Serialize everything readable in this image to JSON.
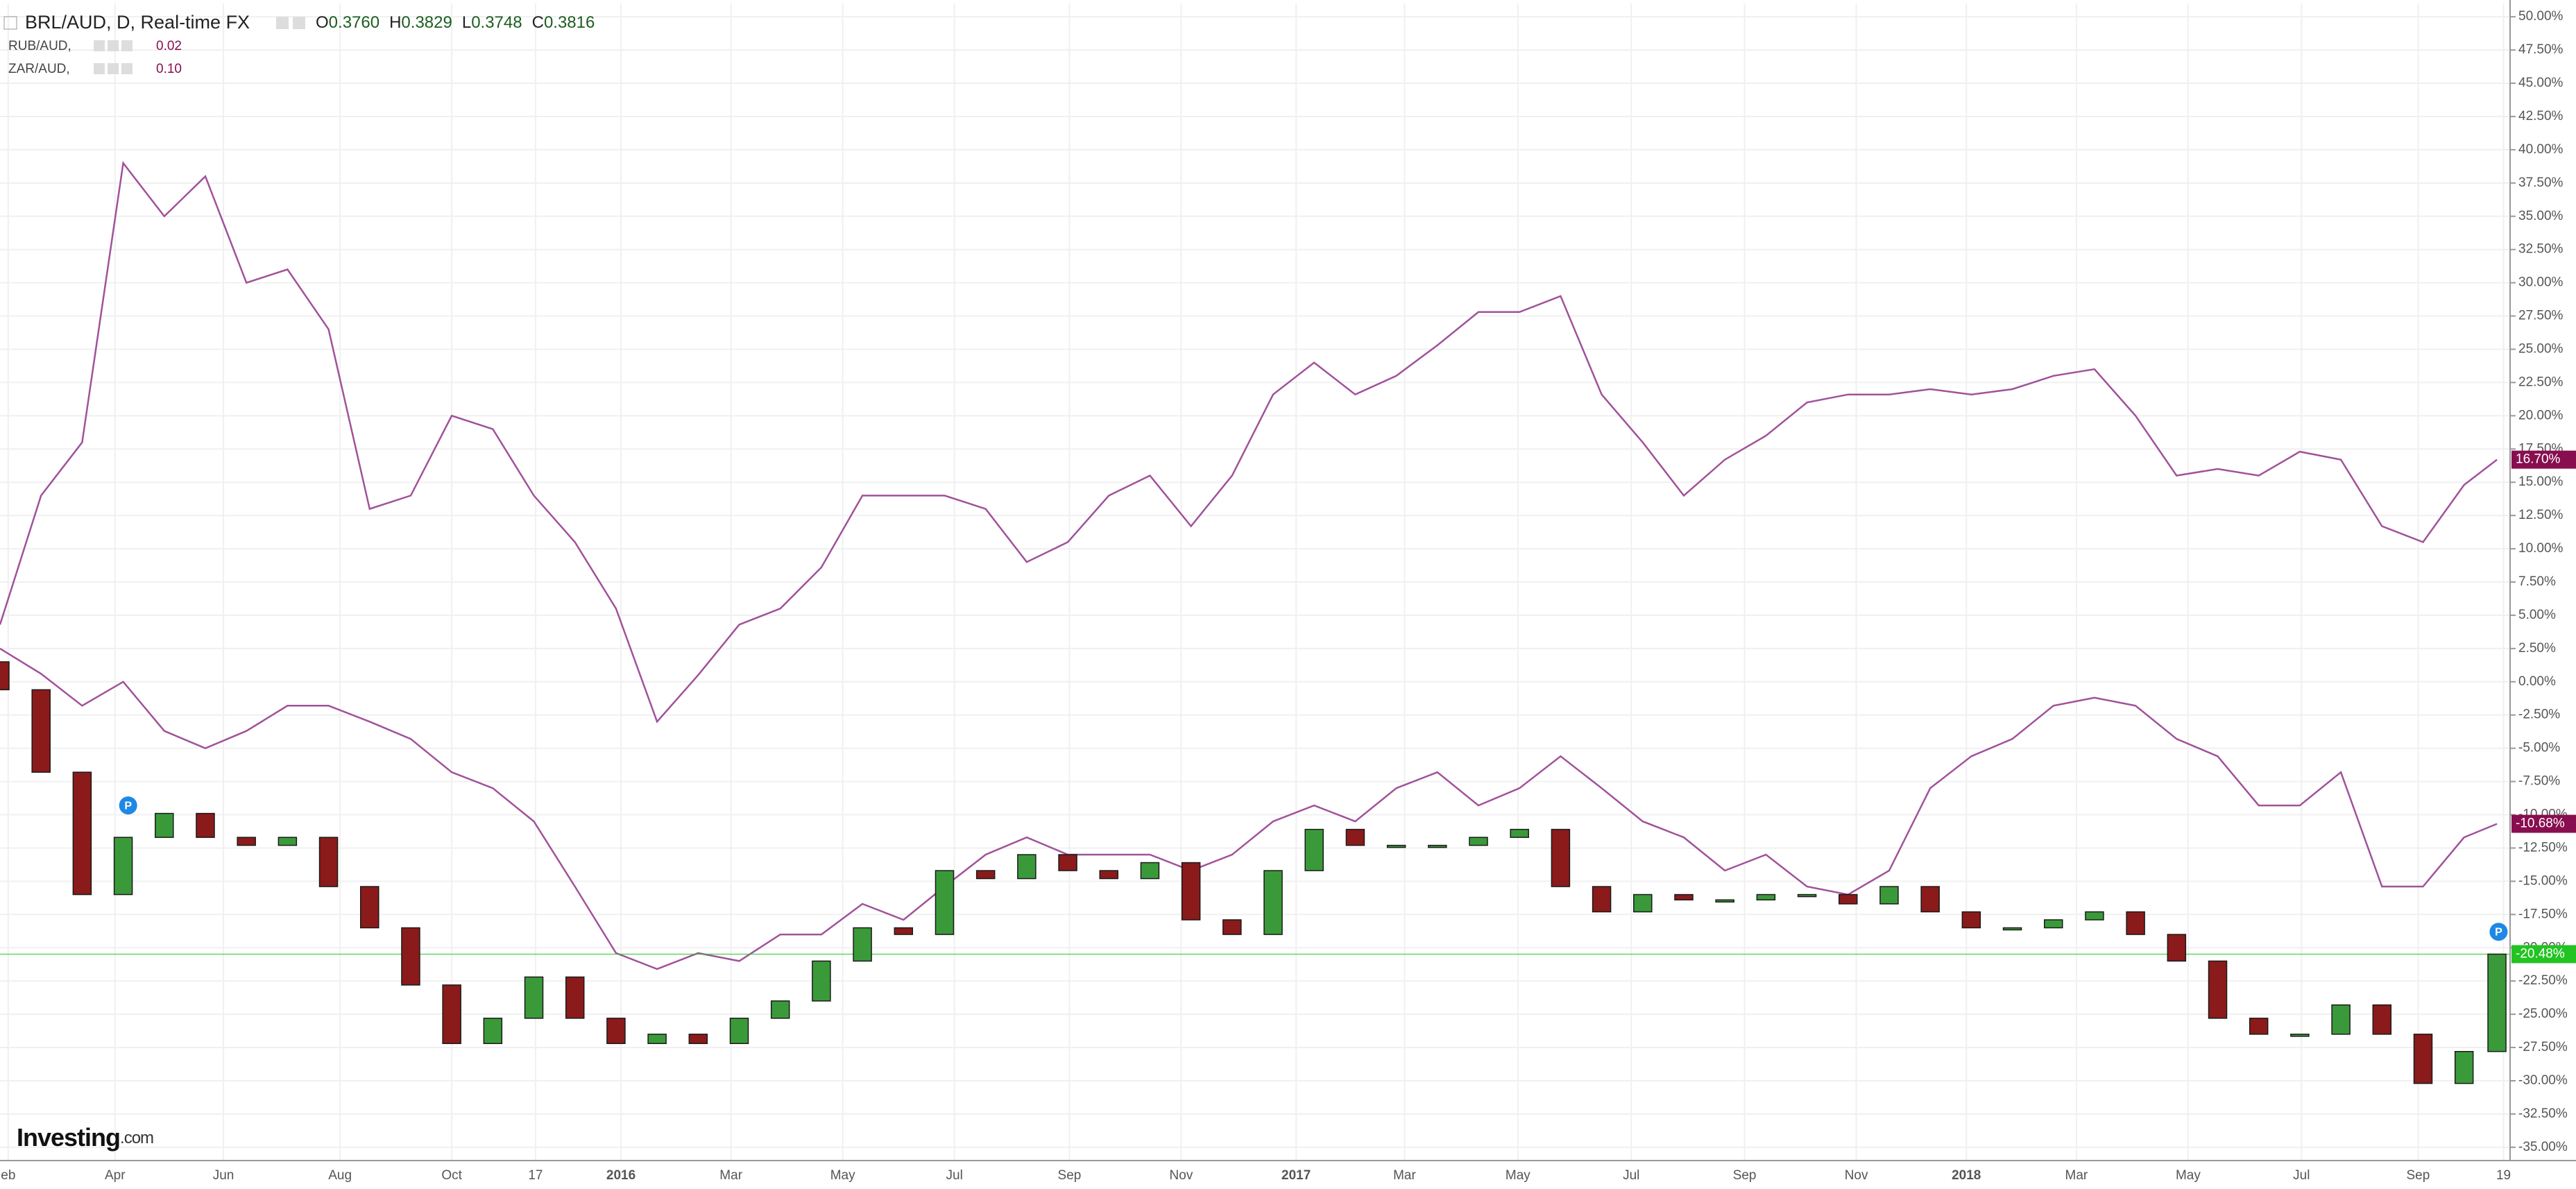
{
  "chart_data": {
    "type": "candlestick",
    "title": "BRL/AUD, D, Real-time FX",
    "ohlc": [
      {
        "key": "O",
        "value": "0.3760"
      },
      {
        "key": "H",
        "value": "0.3829"
      },
      {
        "key": "L",
        "value": "0.3748"
      },
      {
        "key": "C",
        "value": "0.3816"
      }
    ],
    "x": [
      0,
      25,
      50,
      75,
      100,
      125,
      150,
      175,
      200,
      225,
      250,
      275,
      300,
      325,
      350,
      375,
      400,
      425,
      450,
      475,
      500,
      525,
      550,
      575,
      600,
      625,
      650,
      675,
      700,
      725,
      750,
      775,
      800,
      825,
      850,
      875,
      900,
      925,
      950,
      975,
      1000,
      1025,
      1050,
      1075,
      1100,
      1125,
      1150,
      1175,
      1200,
      1225,
      1250,
      1275,
      1300,
      1325,
      1350,
      1375,
      1400,
      1425,
      1450,
      1475,
      1500,
      1520
    ],
    "candles": {
      "open": [
        1.5,
        -0.6,
        -6.8,
        -16,
        -11.7,
        -9.9,
        -11.7,
        -12.3,
        -11.7,
        -15.4,
        -18.5,
        -22.8,
        -27.2,
        -25.3,
        -22.2,
        -25.3,
        -27.2,
        -26.5,
        -27.2,
        -25.3,
        -24,
        -21,
        -18.5,
        -19,
        -14.2,
        -14.8,
        -13,
        -14.2,
        -14.8,
        -13.6,
        -17.9,
        -19,
        -14.2,
        -11.1,
        -12.3,
        -12.3,
        -12.3,
        -11.7,
        -11.1,
        -15.4,
        -17.3,
        -16,
        -16.4,
        -16.4,
        -16,
        -16,
        -16.7,
        -15.4,
        -17.3,
        -18.5,
        -18.5,
        -17.9,
        -17.3,
        -19,
        -21,
        -25.3,
        -26.5,
        -26.5,
        -24.3,
        -26.5,
        -30.2,
        -27.8
      ],
      "close": [
        -0.6,
        -6.8,
        -16,
        -11.7,
        -9.9,
        -11.7,
        -12.3,
        -11.7,
        -15.4,
        -18.5,
        -22.8,
        -27.2,
        -25.3,
        -22.2,
        -25.3,
        -27.2,
        -26.5,
        -27.2,
        -25.3,
        -24,
        -21,
        -18.5,
        -19,
        -14.2,
        -14.8,
        -13,
        -14.2,
        -14.8,
        -13.6,
        -17.9,
        -19,
        -14.2,
        -11.1,
        -12.3,
        -12.3,
        -12.3,
        -11.7,
        -11.1,
        -15.4,
        -17.3,
        -16,
        -16.4,
        -16.4,
        -16,
        -16,
        -16.7,
        -15.4,
        -17.3,
        -18.5,
        -18.5,
        -17.9,
        -17.3,
        -19,
        -21,
        -25.3,
        -26.5,
        -26.5,
        -24.3,
        -26.5,
        -30.2,
        -27.8,
        -20.48
      ],
      "up_color": "#3a9a3a",
      "down_color": "#8b1a1a",
      "tag_color": "#22c322",
      "end_label": "-20.48%"
    },
    "series": [
      {
        "name": "RUB/AUD,",
        "legend_value": "0.02",
        "color": "#a0529a",
        "tag_color": "#880e4f",
        "end_label": "16.70%",
        "values": [
          4.3,
          14,
          18,
          39,
          35,
          38,
          30,
          31,
          26.5,
          13,
          14,
          20,
          19,
          14,
          10.5,
          5.5,
          -3,
          0.5,
          4.3,
          5.5,
          8.6,
          14,
          14,
          14,
          13,
          9,
          10.5,
          14,
          15.5,
          11.7,
          15.5,
          21.6,
          24,
          21.6,
          23,
          25.3,
          27.8,
          27.8,
          29,
          21.6,
          18,
          14,
          16.7,
          18.5,
          21,
          21.6,
          21.6,
          22,
          21.6,
          22,
          23,
          23.5,
          20,
          15.5,
          16,
          15.5,
          17.3,
          16.7,
          11.7,
          10.5,
          14.8,
          16.7
        ]
      },
      {
        "name": "ZAR/AUD,",
        "legend_value": "0.10",
        "color": "#a0529a",
        "tag_color": "#880e4f",
        "end_label": "-10.68%",
        "values": [
          2.5,
          0.6,
          -1.8,
          0,
          -3.7,
          -5,
          -3.7,
          -1.8,
          -1.8,
          -3,
          -4.3,
          -6.8,
          -8,
          -10.5,
          -15.4,
          -20.4,
          -21.6,
          -20.4,
          -21,
          -19,
          -19,
          -16.7,
          -17.9,
          -15.4,
          -13,
          -11.7,
          -13,
          -13,
          -13,
          -14.2,
          -13,
          -10.5,
          -9.3,
          -10.5,
          -8,
          -6.8,
          -9.3,
          -8,
          -5.6,
          -8,
          -10.5,
          -11.7,
          -14.2,
          -13,
          -15.4,
          -16,
          -14.2,
          -8,
          -5.6,
          -4.3,
          -1.8,
          -1.2,
          -1.8,
          -4.3,
          -5.6,
          -9.3,
          -9.3,
          -6.8,
          -15.4,
          -15.4,
          -11.7,
          -10.68
        ]
      }
    ],
    "markers": [
      {
        "label": "P",
        "x": 78,
        "y": -9.3
      },
      {
        "label": "P",
        "x": 1521,
        "y": -18.8
      }
    ],
    "xlim": [
      0,
      1528
    ],
    "xticks": [
      {
        "value": 5,
        "label": "eb"
      },
      {
        "value": 70,
        "label": "Apr"
      },
      {
        "value": 136,
        "label": "Jun"
      },
      {
        "value": 207,
        "label": "Aug"
      },
      {
        "value": 275,
        "label": "Oct"
      },
      {
        "value": 326,
        "label": "17"
      },
      {
        "value": 378,
        "label": "2016"
      },
      {
        "value": 445,
        "label": "Mar"
      },
      {
        "value": 513,
        "label": "May"
      },
      {
        "value": 581,
        "label": "Jul"
      },
      {
        "value": 651,
        "label": "Sep"
      },
      {
        "value": 719,
        "label": "Nov"
      },
      {
        "value": 789,
        "label": "2017"
      },
      {
        "value": 855,
        "label": "Mar"
      },
      {
        "value": 924,
        "label": "May"
      },
      {
        "value": 993,
        "label": "Jul"
      },
      {
        "value": 1062,
        "label": "Sep"
      },
      {
        "value": 1130,
        "label": "Nov"
      },
      {
        "value": 1197,
        "label": "2018"
      },
      {
        "value": 1264,
        "label": "Mar"
      },
      {
        "value": 1332,
        "label": "May"
      },
      {
        "value": 1401,
        "label": "Jul"
      },
      {
        "value": 1472,
        "label": "Sep"
      },
      {
        "value": 1524,
        "label": "19"
      }
    ],
    "ylim": [
      -36,
      51
    ],
    "yticks": [
      {
        "value": 50,
        "label": "50.00%"
      },
      {
        "value": 47.5,
        "label": "47.50%"
      },
      {
        "value": 45,
        "label": "45.00%"
      },
      {
        "value": 42.5,
        "label": "42.50%"
      },
      {
        "value": 40,
        "label": "40.00%"
      },
      {
        "value": 37.5,
        "label": "37.50%"
      },
      {
        "value": 35,
        "label": "35.00%"
      },
      {
        "value": 32.5,
        "label": "32.50%"
      },
      {
        "value": 30,
        "label": "30.00%"
      },
      {
        "value": 27.5,
        "label": "27.50%"
      },
      {
        "value": 25,
        "label": "25.00%"
      },
      {
        "value": 22.5,
        "label": "22.50%"
      },
      {
        "value": 20,
        "label": "20.00%"
      },
      {
        "value": 17.5,
        "label": "17.50%"
      },
      {
        "value": 15,
        "label": "15.00%"
      },
      {
        "value": 12.5,
        "label": "12.50%"
      },
      {
        "value": 10,
        "label": "10.00%"
      },
      {
        "value": 7.5,
        "label": "7.50%"
      },
      {
        "value": 5,
        "label": "5.00%"
      },
      {
        "value": 2.5,
        "label": "2.50%"
      },
      {
        "value": 0,
        "label": "0.00%"
      },
      {
        "value": -2.5,
        "label": "-2.50%"
      },
      {
        "value": -5,
        "label": "-5.00%"
      },
      {
        "value": -7.5,
        "label": "-7.50%"
      },
      {
        "value": -10,
        "label": "-10.00%"
      },
      {
        "value": -12.5,
        "label": "-12.50%"
      },
      {
        "value": -15,
        "label": "-15.00%"
      },
      {
        "value": -17.5,
        "label": "-17.50%"
      },
      {
        "value": -20,
        "label": "-20.00%"
      },
      {
        "value": -22.5,
        "label": "-22.50%"
      },
      {
        "value": -25,
        "label": "-25.00%"
      },
      {
        "value": -27.5,
        "label": "-27.50%"
      },
      {
        "value": -30,
        "label": "-30.00%"
      },
      {
        "value": -32.5,
        "label": "-32.50%"
      },
      {
        "value": -35,
        "label": "-35.00%"
      }
    ],
    "grid": true,
    "logo": {
      "main": "Investing",
      "suffix": ".com"
    }
  }
}
